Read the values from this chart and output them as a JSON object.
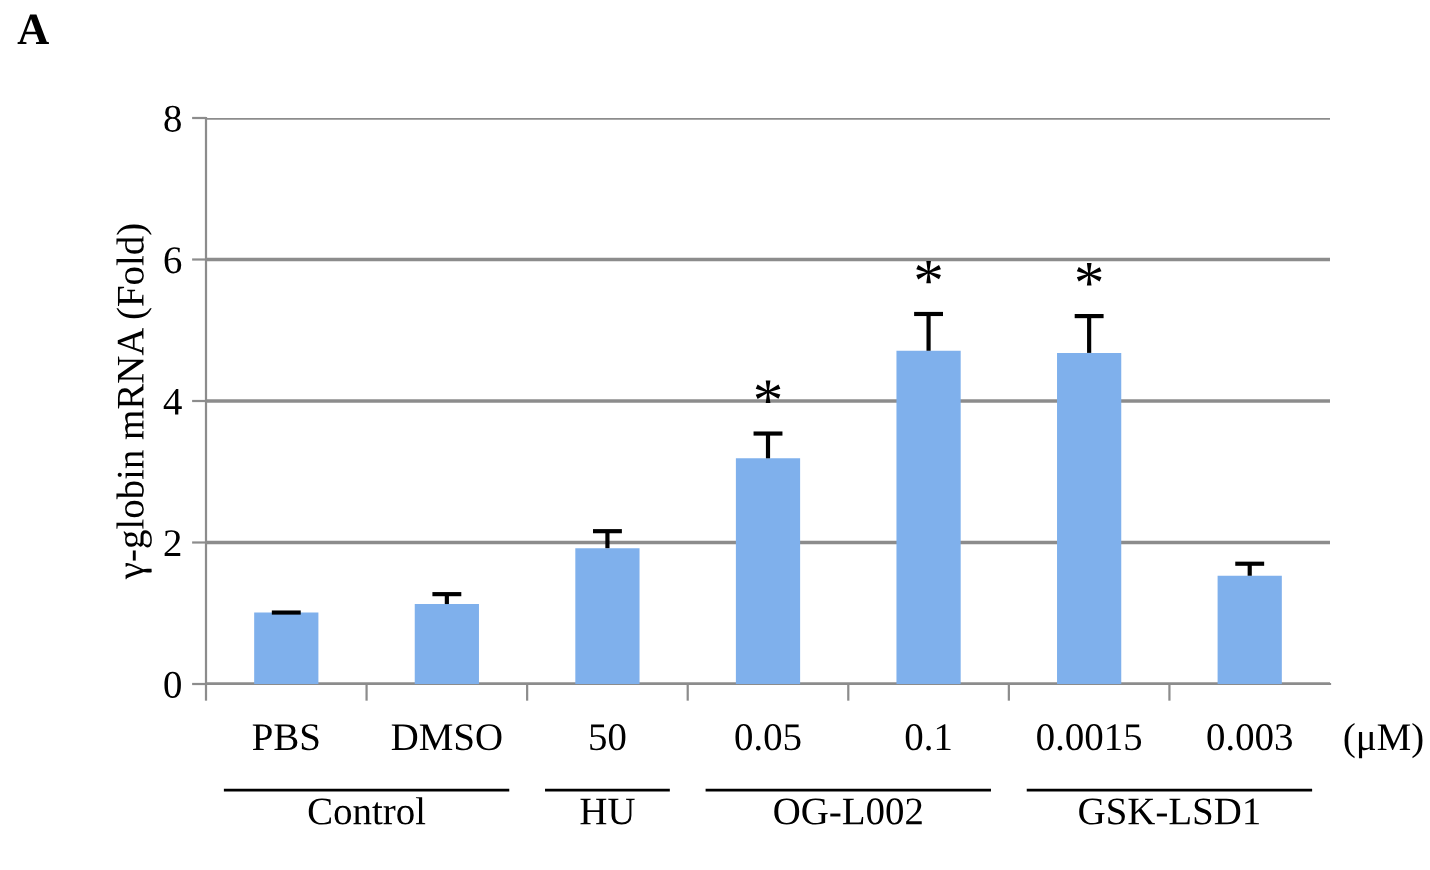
{
  "chart_data": {
    "type": "bar",
    "ylabel": "γ-globin mRNA (Fold)",
    "categories": [
      "PBS",
      "DMSO",
      "50",
      "0.05",
      "0.1",
      "0.0015",
      "0.003"
    ],
    "values": [
      1.01,
      1.13,
      1.92,
      3.19,
      4.71,
      4.68,
      1.53
    ],
    "errors": [
      [
        1.01,
        1.01
      ],
      [
        1.13,
        1.27
      ],
      [
        1.92,
        2.16
      ],
      [
        3.19,
        3.54
      ],
      [
        4.71,
        5.23
      ],
      [
        4.68,
        5.2
      ],
      [
        1.53,
        1.7
      ]
    ],
    "color": "#7fb0ec",
    "ylim": [
      0,
      8
    ],
    "yticks": [
      0,
      2,
      4,
      6,
      8
    ],
    "grid": "y",
    "annotations": [
      "A",
      "Control",
      "HU",
      "OG-L002",
      "GSK-LSD1",
      "(μM)",
      {
        "text": "*",
        "x": "0.05",
        "y": 3.54
      },
      {
        "text": "*",
        "x": "0.1",
        "y": 5.23
      },
      {
        "text": "*",
        "x": "0.0015",
        "y": 5.2
      }
    ]
  }
}
